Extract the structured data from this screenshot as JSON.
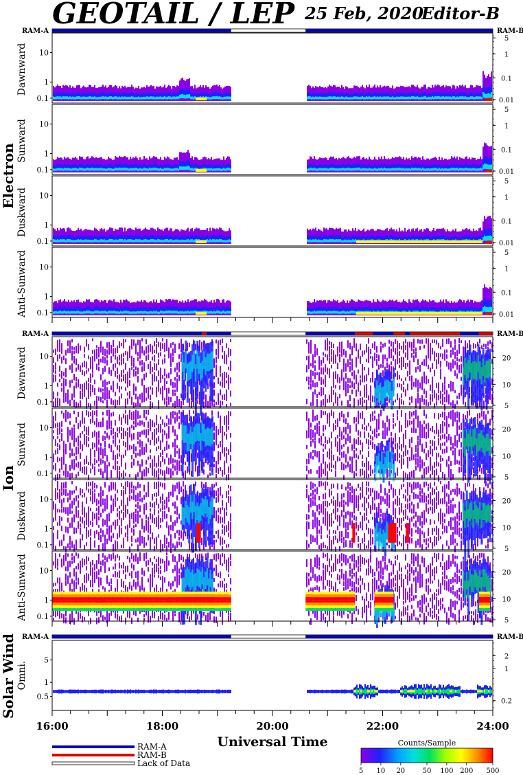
{
  "header": {
    "title": "GEOTAIL / LEP",
    "date": "25 Feb, 2020",
    "editor": "Editor-B"
  },
  "ram_labels": {
    "left": "RAM-A",
    "right": "RAM-B"
  },
  "groups": [
    {
      "label": "Electron"
    },
    {
      "label": "Ion"
    },
    {
      "label": "Solar Wind"
    }
  ],
  "colors": {
    "ram_a": "#0000c8",
    "ram_b": "#e00000",
    "colormap": [
      "#8a00e6",
      "#2020ff",
      "#00a0ff",
      "#00e0e0",
      "#00e060",
      "#a0ff00",
      "#ffff00",
      "#ff9000",
      "#ff0000"
    ]
  },
  "chart_data": [
    {
      "type": "heatmap",
      "group": "Electron",
      "panels": [
        {
          "label": "Dawnward",
          "left_ticks": [
            "10",
            "1",
            "0.1"
          ],
          "right_ticks": [
            "5",
            "1",
            "0.1",
            "0.01"
          ]
        },
        {
          "label": "Sunward",
          "left_ticks": [
            "10",
            "1",
            "0.1"
          ],
          "right_ticks": [
            "5",
            "1",
            "0.1",
            "0.01"
          ]
        },
        {
          "label": "Duskward",
          "left_ticks": [
            "10",
            "1",
            "0.1"
          ],
          "right_ticks": [
            "5",
            "1",
            "0.1",
            "0.01"
          ]
        },
        {
          "label": "Anti-Sunward",
          "left_ticks": [
            "10",
            "1",
            "0.1"
          ],
          "right_ticks": [
            "5",
            "1",
            "0.1",
            "0.01"
          ]
        }
      ],
      "yscale": "log",
      "ram_state": [
        {
          "state": "RAM-A",
          "from": 16.0,
          "to": 19.25
        },
        {
          "state": "none",
          "from": 19.25,
          "to": 20.6
        },
        {
          "state": "RAM-A",
          "from": 20.6,
          "to": 24.0
        }
      ]
    },
    {
      "type": "heatmap",
      "group": "Ion",
      "panels": [
        {
          "label": "Dawnward",
          "left_ticks": [
            "10",
            "1",
            "0.1"
          ],
          "right_ticks": [
            "20",
            "10",
            "5"
          ]
        },
        {
          "label": "Sunward",
          "left_ticks": [
            "10",
            "1",
            "0.1"
          ],
          "right_ticks": [
            "20",
            "10",
            "5"
          ]
        },
        {
          "label": "Duskward",
          "left_ticks": [
            "10",
            "1",
            "0.1"
          ],
          "right_ticks": [
            "20",
            "10",
            "5"
          ]
        },
        {
          "label": "Anti-Sunward",
          "left_ticks": [
            "10",
            "1",
            "0.1"
          ],
          "right_ticks": [
            "20",
            "10",
            "5"
          ]
        }
      ],
      "yscale": "log",
      "ram_state": [
        {
          "state": "RAM-A",
          "from": 16.0,
          "to": 18.72
        },
        {
          "state": "RAM-B",
          "from": 18.72,
          "to": 18.8
        },
        {
          "state": "RAM-A",
          "from": 18.8,
          "to": 19.25
        },
        {
          "state": "none",
          "from": 19.25,
          "to": 20.6
        },
        {
          "state": "RAM-A",
          "from": 20.6,
          "to": 21.5
        },
        {
          "state": "RAM-B",
          "from": 21.5,
          "to": 21.82
        },
        {
          "state": "RAM-A",
          "from": 21.82,
          "to": 22.2
        },
        {
          "state": "RAM-B",
          "from": 22.2,
          "to": 22.4
        },
        {
          "state": "RAM-A",
          "from": 22.4,
          "to": 22.5
        },
        {
          "state": "RAM-B",
          "from": 22.5,
          "to": 23.4
        },
        {
          "state": "RAM-A",
          "from": 23.4,
          "to": 23.75
        },
        {
          "state": "RAM-B",
          "from": 23.75,
          "to": 24.0
        }
      ]
    },
    {
      "type": "heatmap",
      "group": "Solar Wind",
      "panels": [
        {
          "label": "Omni.",
          "left_ticks": [
            "5",
            "1",
            "0.5"
          ],
          "right_ticks": [
            "2",
            "1",
            "0.2"
          ]
        }
      ],
      "yscale": "log",
      "ram_state": [
        {
          "state": "RAM-A",
          "from": 16.0,
          "to": 19.25
        },
        {
          "state": "none",
          "from": 19.25,
          "to": 20.6
        },
        {
          "state": "RAM-A",
          "from": 20.6,
          "to": 24.0
        }
      ]
    }
  ],
  "x_axis": {
    "label": "Universal Time",
    "ticks": [
      "16:00",
      "18:00",
      "20:00",
      "22:00",
      "24:00"
    ],
    "range": [
      16.0,
      24.0
    ],
    "data_gap": [
      19.25,
      20.6
    ]
  },
  "legend": {
    "items": [
      {
        "label": "RAM-A",
        "color": "#0000c8"
      },
      {
        "label": "RAM-B",
        "color": "#e00000"
      },
      {
        "label": "Lack of Data",
        "color": "#ffffff"
      }
    ]
  },
  "colorbar": {
    "title": "Counts/Sample",
    "ticks": [
      "5",
      "10",
      "20",
      "50",
      "100",
      "200",
      "500"
    ],
    "range": [
      5,
      500
    ],
    "scale": "log"
  }
}
